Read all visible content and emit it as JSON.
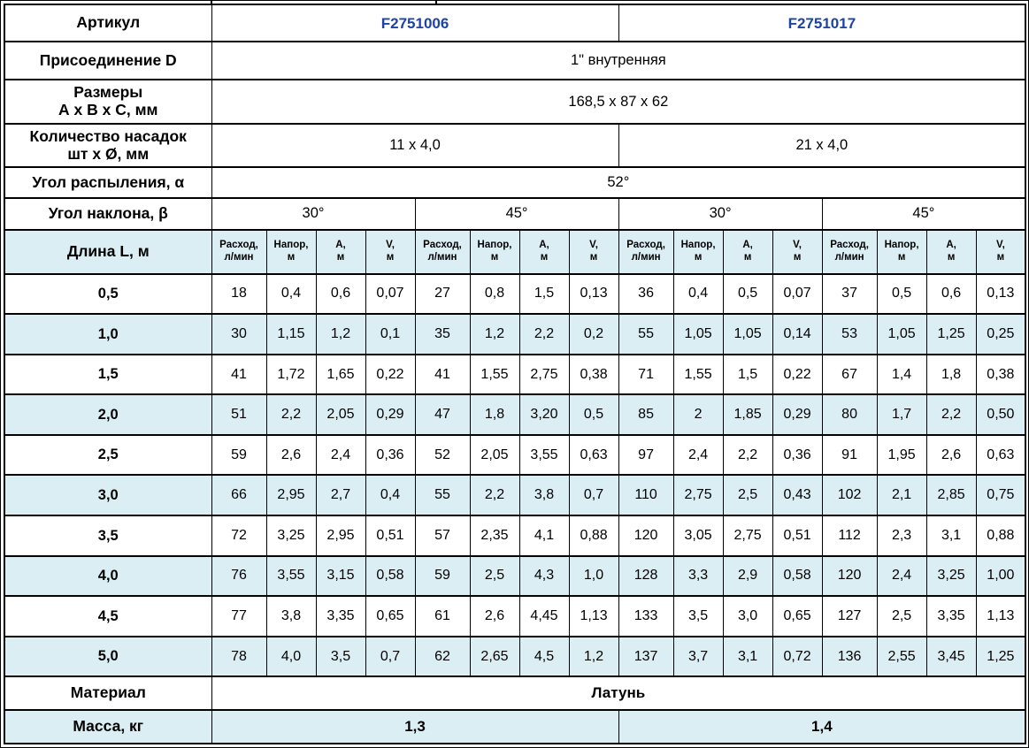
{
  "colors": {
    "article_blue": "#1e43a8",
    "row_shade": "#daeef3",
    "border": "#000000"
  },
  "specs": {
    "articul": {
      "label": "Артикул",
      "values": [
        "F2751006",
        "F2751017"
      ]
    },
    "connection": {
      "label": "Присоединение D",
      "value": "1\" внутренняя"
    },
    "dimensions": {
      "label": "Размеры\nА х В х С, мм",
      "value": "168,5 x 87 x 62"
    },
    "nozzles": {
      "label": "Количество насадок\nшт х Ø, мм",
      "values": [
        "11 x 4,0",
        "21 x 4,0"
      ]
    },
    "spray_angle": {
      "label": "Угол распыления, α",
      "value": "52°"
    },
    "tilt_angle": {
      "label": "Угол наклона, β",
      "values": [
        "30°",
        "45°",
        "30°",
        "45°"
      ]
    }
  },
  "table": {
    "length_header": "Длина L, м",
    "col_headers": [
      "Расход,\nл/мин",
      "Напор,\nм",
      "А,\nм",
      "V,\nм"
    ],
    "rows": [
      {
        "label": "0,5",
        "values": [
          "18",
          "0,4",
          "0,6",
          "0,07",
          "27",
          "0,8",
          "1,5",
          "0,13",
          "36",
          "0,4",
          "0,5",
          "0,07",
          "37",
          "0,5",
          "0,6",
          "0,13"
        ]
      },
      {
        "label": "1,0",
        "values": [
          "30",
          "1,15",
          "1,2",
          "0,1",
          "35",
          "1,2",
          "2,2",
          "0,2",
          "55",
          "1,05",
          "1,05",
          "0,14",
          "53",
          "1,05",
          "1,25",
          "0,25"
        ]
      },
      {
        "label": "1,5",
        "values": [
          "41",
          "1,72",
          "1,65",
          "0,22",
          "41",
          "1,55",
          "2,75",
          "0,38",
          "71",
          "1,55",
          "1,5",
          "0,22",
          "67",
          "1,4",
          "1,8",
          "0,38"
        ]
      },
      {
        "label": "2,0",
        "values": [
          "51",
          "2,2",
          "2,05",
          "0,29",
          "47",
          "1,8",
          "3,20",
          "0,5",
          "85",
          "2",
          "1,85",
          "0,29",
          "80",
          "1,7",
          "2,2",
          "0,50"
        ]
      },
      {
        "label": "2,5",
        "values": [
          "59",
          "2,6",
          "2,4",
          "0,36",
          "52",
          "2,05",
          "3,55",
          "0,63",
          "97",
          "2,4",
          "2,2",
          "0,36",
          "91",
          "1,95",
          "2,6",
          "0,63"
        ]
      },
      {
        "label": "3,0",
        "values": [
          "66",
          "2,95",
          "2,7",
          "0,4",
          "55",
          "2,2",
          "3,8",
          "0,7",
          "110",
          "2,75",
          "2,5",
          "0,43",
          "102",
          "2,1",
          "2,85",
          "0,75"
        ]
      },
      {
        "label": "3,5",
        "values": [
          "72",
          "3,25",
          "2,95",
          "0,51",
          "57",
          "2,35",
          "4,1",
          "0,88",
          "120",
          "3,05",
          "2,75",
          "0,51",
          "112",
          "2,3",
          "3,1",
          "0,88"
        ]
      },
      {
        "label": "4,0",
        "values": [
          "76",
          "3,55",
          "3,15",
          "0,58",
          "59",
          "2,5",
          "4,3",
          "1,0",
          "128",
          "3,3",
          "2,9",
          "0,58",
          "120",
          "2,4",
          "3,25",
          "1,00"
        ]
      },
      {
        "label": "4,5",
        "values": [
          "77",
          "3,8",
          "3,35",
          "0,65",
          "61",
          "2,6",
          "4,45",
          "1,13",
          "133",
          "3,5",
          "3,0",
          "0,65",
          "127",
          "2,5",
          "3,35",
          "1,13"
        ]
      },
      {
        "label": "5,0",
        "values": [
          "78",
          "4,0",
          "3,5",
          "0,7",
          "62",
          "2,65",
          "4,5",
          "1,2",
          "137",
          "3,7",
          "3,1",
          "0,72",
          "136",
          "2,55",
          "3,45",
          "1,25"
        ]
      }
    ]
  },
  "footer": {
    "material": {
      "label": "Материал",
      "value": "Латунь"
    },
    "mass": {
      "label": "Масса, кг",
      "values": [
        "1,3",
        "1,4"
      ]
    }
  }
}
